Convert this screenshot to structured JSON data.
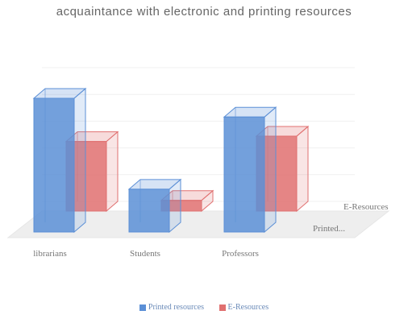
{
  "chart_data": {
    "type": "bar",
    "title": "acquaintance with electronic and printing resources",
    "categories": [
      "librarians",
      "Students",
      "Professors"
    ],
    "depth_labels": [
      "E-Resources",
      "Printed..."
    ],
    "series": [
      {
        "name": "Printed resources",
        "values": [
          100,
          32,
          86
        ]
      },
      {
        "name": "E-Resources",
        "values": [
          52,
          8,
          56
        ]
      }
    ],
    "ylim": [
      0,
      100
    ],
    "grid": true,
    "legend": "bottom",
    "colors": {
      "Printed resources": "#5b8fd6",
      "E-Resources": "#e07070"
    }
  }
}
